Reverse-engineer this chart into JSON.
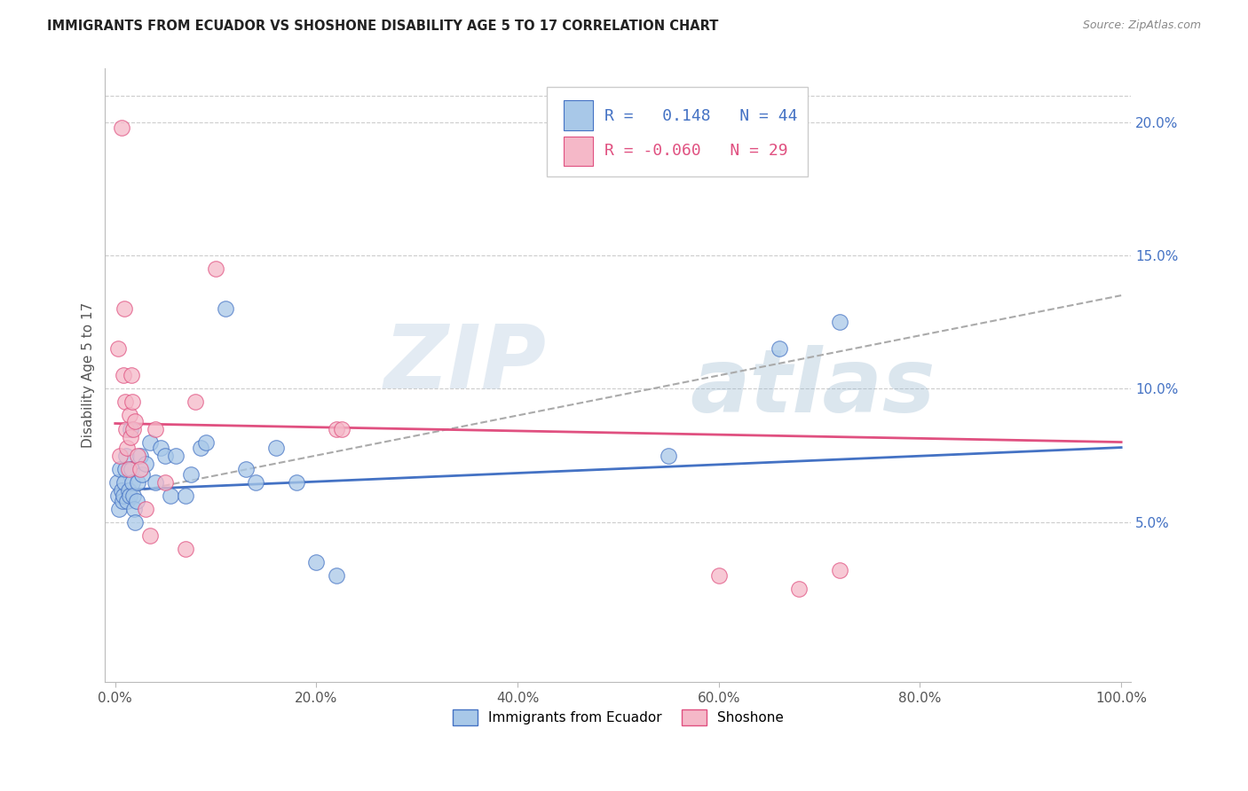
{
  "title": "IMMIGRANTS FROM ECUADOR VS SHOSHONE DISABILITY AGE 5 TO 17 CORRELATION CHART",
  "source": "Source: ZipAtlas.com",
  "ylabel": "Disability Age 5 to 17",
  "x_tick_labels": [
    "0.0%",
    "20.0%",
    "40.0%",
    "60.0%",
    "80.0%",
    "100.0%"
  ],
  "x_tick_vals": [
    0,
    20,
    40,
    60,
    80,
    100
  ],
  "y_tick_labels": [
    "5.0%",
    "10.0%",
    "15.0%",
    "20.0%"
  ],
  "y_tick_vals": [
    5,
    10,
    15,
    20
  ],
  "xlim": [
    -1,
    101
  ],
  "ylim": [
    -1,
    22
  ],
  "legend1_label": "Immigrants from Ecuador",
  "legend2_label": "Shoshone",
  "r1": "0.148",
  "n1": "44",
  "r2": "-0.060",
  "n2": "29",
  "color_blue": "#a8c8e8",
  "color_pink": "#f5b8c8",
  "color_blue_line": "#4472c4",
  "color_pink_line": "#e05080",
  "color_dashed_line": "#aaaaaa",
  "watermark_zip": "ZIP",
  "watermark_atlas": "atlas",
  "blue_x": [
    0.2,
    0.3,
    0.4,
    0.5,
    0.6,
    0.7,
    0.8,
    0.9,
    1.0,
    1.1,
    1.2,
    1.3,
    1.4,
    1.5,
    1.6,
    1.7,
    1.8,
    1.9,
    2.0,
    2.1,
    2.2,
    2.5,
    2.7,
    3.0,
    3.5,
    4.0,
    4.5,
    5.0,
    5.5,
    6.0,
    7.0,
    7.5,
    8.5,
    9.0,
    11.0,
    13.0,
    14.0,
    16.0,
    18.0,
    20.0,
    22.0,
    55.0,
    66.0,
    72.0
  ],
  "blue_y": [
    6.5,
    6.0,
    5.5,
    7.0,
    6.2,
    5.8,
    6.0,
    6.5,
    7.0,
    7.5,
    5.8,
    6.2,
    6.0,
    8.5,
    7.0,
    6.5,
    6.0,
    5.5,
    5.0,
    5.8,
    6.5,
    7.5,
    6.8,
    7.2,
    8.0,
    6.5,
    7.8,
    7.5,
    6.0,
    7.5,
    6.0,
    6.8,
    7.8,
    8.0,
    13.0,
    7.0,
    6.5,
    7.8,
    6.5,
    3.5,
    3.0,
    7.5,
    11.5,
    12.5
  ],
  "pink_x": [
    0.3,
    0.5,
    0.6,
    0.8,
    0.9,
    1.0,
    1.1,
    1.2,
    1.3,
    1.4,
    1.5,
    1.6,
    1.7,
    1.8,
    2.0,
    2.2,
    2.5,
    3.0,
    3.5,
    4.0,
    5.0,
    7.0,
    8.0,
    10.0,
    22.0,
    60.0,
    68.0,
    72.0,
    22.5
  ],
  "pink_y": [
    11.5,
    7.5,
    19.8,
    10.5,
    13.0,
    9.5,
    8.5,
    7.8,
    7.0,
    9.0,
    8.2,
    10.5,
    9.5,
    8.5,
    8.8,
    7.5,
    7.0,
    5.5,
    4.5,
    8.5,
    6.5,
    4.0,
    9.5,
    14.5,
    8.5,
    3.0,
    2.5,
    3.2,
    8.5
  ],
  "blue_line_x0": 0,
  "blue_line_x1": 100,
  "blue_line_y0": 6.2,
  "blue_line_y1": 7.8,
  "pink_line_x0": 0,
  "pink_line_x1": 100,
  "pink_line_y0": 8.7,
  "pink_line_y1": 8.0,
  "dash_line_x0": 0,
  "dash_line_x1": 100,
  "dash_line_y0": 6.0,
  "dash_line_y1": 13.5
}
